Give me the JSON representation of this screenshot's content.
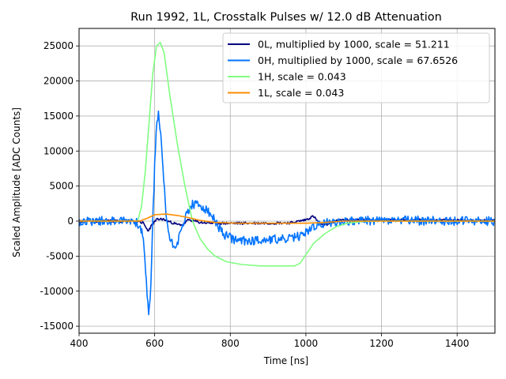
{
  "chart_data": {
    "type": "line",
    "title": "Run 1992, 1L, Crosstalk Pulses w/ 12.0 dB Attenuation",
    "xlabel": "Time [ns]",
    "ylabel": "Scaled Amplitude [ADC Counts]",
    "xlim": [
      400,
      1500
    ],
    "ylim": [
      -16000,
      27500
    ],
    "xticks": [
      400,
      600,
      800,
      1000,
      1200,
      1400
    ],
    "yticks": [
      -15000,
      -10000,
      -5000,
      0,
      5000,
      10000,
      15000,
      20000,
      25000
    ],
    "grid": true,
    "legend_position": "top-right",
    "series": [
      {
        "name": "0L, multiplied by 1000,  scale = 51.211",
        "color": "#000080",
        "noise": 180,
        "points": [
          [
            400,
            0
          ],
          [
            560,
            0
          ],
          [
            570,
            -300
          ],
          [
            582,
            -1400
          ],
          [
            595,
            -400
          ],
          [
            605,
            200
          ],
          [
            620,
            300
          ],
          [
            640,
            -100
          ],
          [
            660,
            -500
          ],
          [
            675,
            -500
          ],
          [
            690,
            200
          ],
          [
            720,
            -200
          ],
          [
            760,
            -300
          ],
          [
            850,
            -300
          ],
          [
            960,
            -250
          ],
          [
            1000,
            200
          ],
          [
            1020,
            700
          ],
          [
            1040,
            -600
          ],
          [
            1060,
            -400
          ],
          [
            1080,
            0
          ],
          [
            1100,
            200
          ],
          [
            1500,
            100
          ]
        ]
      },
      {
        "name": "0H, multiplied by 1000,  scale = 67.6526",
        "color": "#0073ff",
        "noise": 650,
        "points": [
          [
            400,
            0
          ],
          [
            540,
            100
          ],
          [
            560,
            -500
          ],
          [
            570,
            -2500
          ],
          [
            578,
            -9000
          ],
          [
            585,
            -13500
          ],
          [
            590,
            -9000
          ],
          [
            595,
            0
          ],
          [
            600,
            8000
          ],
          [
            605,
            14000
          ],
          [
            610,
            15200
          ],
          [
            615,
            13000
          ],
          [
            620,
            9000
          ],
          [
            630,
            1000
          ],
          [
            640,
            -2500
          ],
          [
            650,
            -3500
          ],
          [
            660,
            -3000
          ],
          [
            670,
            -1500
          ],
          [
            680,
            500
          ],
          [
            690,
            1500
          ],
          [
            700,
            2400
          ],
          [
            720,
            2200
          ],
          [
            740,
            1400
          ],
          [
            760,
            0
          ],
          [
            780,
            -1800
          ],
          [
            800,
            -2400
          ],
          [
            820,
            -2800
          ],
          [
            850,
            -2800
          ],
          [
            900,
            -2600
          ],
          [
            950,
            -2600
          ],
          [
            980,
            -2200
          ],
          [
            1000,
            -1600
          ],
          [
            1020,
            -800
          ],
          [
            1050,
            -300
          ],
          [
            1080,
            -100
          ],
          [
            1100,
            0
          ],
          [
            1200,
            100
          ],
          [
            1500,
            0
          ]
        ]
      },
      {
        "name": "1H,  scale = 0.043",
        "color": "#80ff80",
        "noise": 0,
        "points": [
          [
            400,
            0
          ],
          [
            555,
            0
          ],
          [
            565,
            2000
          ],
          [
            575,
            7000
          ],
          [
            585,
            14000
          ],
          [
            595,
            21000
          ],
          [
            605,
            25000
          ],
          [
            615,
            25500
          ],
          [
            625,
            24000
          ],
          [
            640,
            18000
          ],
          [
            660,
            11000
          ],
          [
            680,
            5000
          ],
          [
            700,
            0
          ],
          [
            720,
            -2500
          ],
          [
            740,
            -4000
          ],
          [
            760,
            -5000
          ],
          [
            790,
            -5800
          ],
          [
            830,
            -6200
          ],
          [
            880,
            -6400
          ],
          [
            930,
            -6400
          ],
          [
            970,
            -6400
          ],
          [
            985,
            -6000
          ],
          [
            1000,
            -4800
          ],
          [
            1020,
            -3200
          ],
          [
            1050,
            -1800
          ],
          [
            1080,
            -800
          ],
          [
            1110,
            -300
          ],
          [
            1150,
            -50
          ],
          [
            1200,
            0
          ],
          [
            1500,
            0
          ]
        ]
      },
      {
        "name": "1L,  scale = 0.043",
        "color": "#ff8c00",
        "noise": 0,
        "points": [
          [
            400,
            0
          ],
          [
            560,
            0
          ],
          [
            580,
            400
          ],
          [
            600,
            900
          ],
          [
            630,
            1000
          ],
          [
            660,
            800
          ],
          [
            690,
            500
          ],
          [
            720,
            100
          ],
          [
            760,
            -200
          ],
          [
            820,
            -300
          ],
          [
            950,
            -300
          ],
          [
            1000,
            -300
          ],
          [
            1050,
            -200
          ],
          [
            1100,
            0
          ],
          [
            1500,
            0
          ]
        ]
      }
    ]
  }
}
